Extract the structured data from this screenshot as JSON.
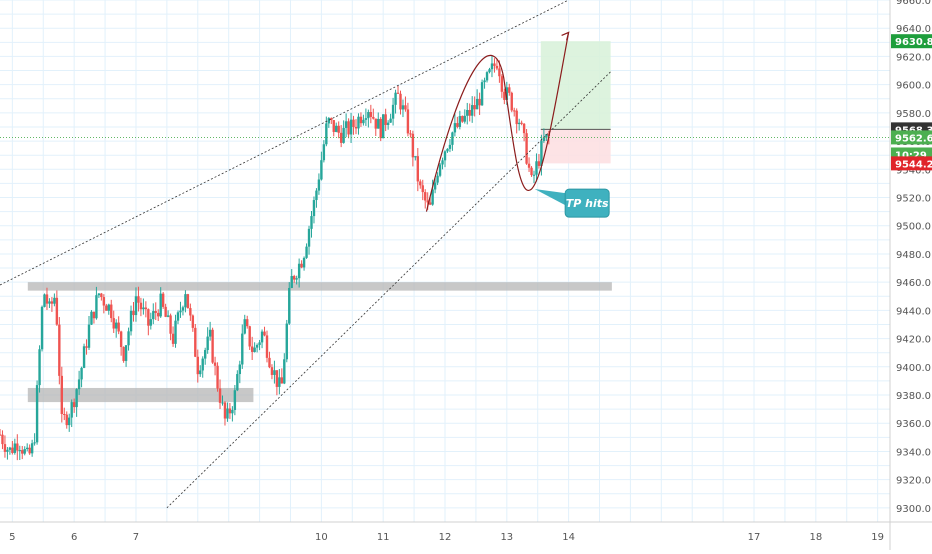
{
  "chart_data": {
    "type": "candlestick",
    "title": "",
    "xlabel": "",
    "ylabel": "",
    "ylim": [
      9290,
      9660
    ],
    "xlim": [
      4.8,
      19.2
    ],
    "grid": true,
    "x_tick_labels": [
      {
        "x": 5,
        "label": "5"
      },
      {
        "x": 6,
        "label": "6"
      },
      {
        "x": 7,
        "label": "7"
      },
      {
        "x": 10,
        "label": "10"
      },
      {
        "x": 11,
        "label": "11"
      },
      {
        "x": 12,
        "label": "12"
      },
      {
        "x": 13,
        "label": "13"
      },
      {
        "x": 14,
        "label": "14"
      },
      {
        "x": 17,
        "label": "17"
      },
      {
        "x": 18,
        "label": "18"
      },
      {
        "x": 19,
        "label": "19"
      }
    ],
    "y_tick_labels": [
      "9300.0",
      "9320.0",
      "9340.0",
      "9360.0",
      "9380.0",
      "9400.0",
      "9420.0",
      "9440.0",
      "9460.0",
      "9480.0",
      "9500.0",
      "9520.0",
      "9540.0",
      "9560.0",
      "9580.0",
      "9600.0",
      "9620.0",
      "9640.0",
      "9660.0"
    ],
    "price_path": [
      {
        "x": 4.8,
        "y": 9352
      },
      {
        "x": 4.95,
        "y": 9340
      },
      {
        "x": 5.1,
        "y": 9348
      },
      {
        "x": 5.25,
        "y": 9335
      },
      {
        "x": 5.35,
        "y": 9345
      },
      {
        "x": 5.5,
        "y": 9455
      },
      {
        "x": 5.6,
        "y": 9440
      },
      {
        "x": 5.7,
        "y": 9452
      },
      {
        "x": 5.8,
        "y": 9360
      },
      {
        "x": 5.95,
        "y": 9370
      },
      {
        "x": 6.1,
        "y": 9395
      },
      {
        "x": 6.25,
        "y": 9430
      },
      {
        "x": 6.4,
        "y": 9452
      },
      {
        "x": 6.6,
        "y": 9440
      },
      {
        "x": 6.8,
        "y": 9410
      },
      {
        "x": 7.0,
        "y": 9450
      },
      {
        "x": 7.2,
        "y": 9430
      },
      {
        "x": 7.4,
        "y": 9445
      },
      {
        "x": 7.6,
        "y": 9420
      },
      {
        "x": 7.8,
        "y": 9455
      },
      {
        "x": 8.0,
        "y": 9400
      },
      {
        "x": 8.2,
        "y": 9420
      },
      {
        "x": 8.3,
        "y": 9392
      },
      {
        "x": 8.45,
        "y": 9360
      },
      {
        "x": 8.6,
        "y": 9380
      },
      {
        "x": 8.75,
        "y": 9430
      },
      {
        "x": 8.9,
        "y": 9410
      },
      {
        "x": 9.05,
        "y": 9425
      },
      {
        "x": 9.2,
        "y": 9400
      },
      {
        "x": 9.35,
        "y": 9382
      },
      {
        "x": 9.5,
        "y": 9460
      },
      {
        "x": 9.7,
        "y": 9478
      },
      {
        "x": 9.9,
        "y": 9520
      },
      {
        "x": 10.1,
        "y": 9574
      },
      {
        "x": 10.3,
        "y": 9565
      },
      {
        "x": 10.5,
        "y": 9570
      },
      {
        "x": 10.75,
        "y": 9585
      },
      {
        "x": 10.95,
        "y": 9568
      },
      {
        "x": 11.1,
        "y": 9580
      },
      {
        "x": 11.25,
        "y": 9592
      },
      {
        "x": 11.4,
        "y": 9570
      },
      {
        "x": 11.6,
        "y": 9525
      },
      {
        "x": 11.75,
        "y": 9510
      },
      {
        "x": 11.9,
        "y": 9545
      },
      {
        "x": 12.1,
        "y": 9565
      },
      {
        "x": 12.3,
        "y": 9575
      },
      {
        "x": 12.5,
        "y": 9585
      },
      {
        "x": 12.7,
        "y": 9605
      },
      {
        "x": 12.85,
        "y": 9618
      },
      {
        "x": 12.95,
        "y": 9595
      },
      {
        "x": 13.05,
        "y": 9590
      },
      {
        "x": 13.2,
        "y": 9575
      },
      {
        "x": 13.3,
        "y": 9555
      },
      {
        "x": 13.4,
        "y": 9530
      },
      {
        "x": 13.5,
        "y": 9545
      },
      {
        "x": 13.6,
        "y": 9560
      },
      {
        "x": 13.68,
        "y": 9562.6
      }
    ],
    "price_labels": [
      {
        "label": "9630.8",
        "value": 9630.8,
        "color": "#1e9e3c"
      },
      {
        "label": "9568.3",
        "value": 9568.3,
        "color": "#333333"
      },
      {
        "label": "9562.6",
        "value": 9562.6,
        "color": "#4caf50"
      },
      {
        "label": "10:29",
        "value": 9550.5,
        "color": "#4caf50"
      },
      {
        "label": "9544.2",
        "value": 9544.2,
        "color": "#e0242a"
      }
    ],
    "support_zones": [
      {
        "x0": 5.25,
        "x1": 14.7,
        "y0": 9454,
        "y1": 9460
      },
      {
        "x0": 5.25,
        "x1": 8.9,
        "y0": 9375,
        "y1": 9385
      }
    ],
    "trend_lines": [
      {
        "x0": 4.8,
        "y0": 9458,
        "x1": 14.0,
        "y1": 9660
      },
      {
        "x0": 7.5,
        "y0": 9300,
        "x1": 14.7,
        "y1": 9610
      }
    ],
    "position": {
      "entry": 9568.3,
      "target": 9630.8,
      "stop": 9544.2,
      "x0": 13.55,
      "x1": 14.68
    },
    "current_price": 9562.6,
    "annotation": {
      "text": "TP hits",
      "x": 14.3,
      "y": 9516
    }
  }
}
